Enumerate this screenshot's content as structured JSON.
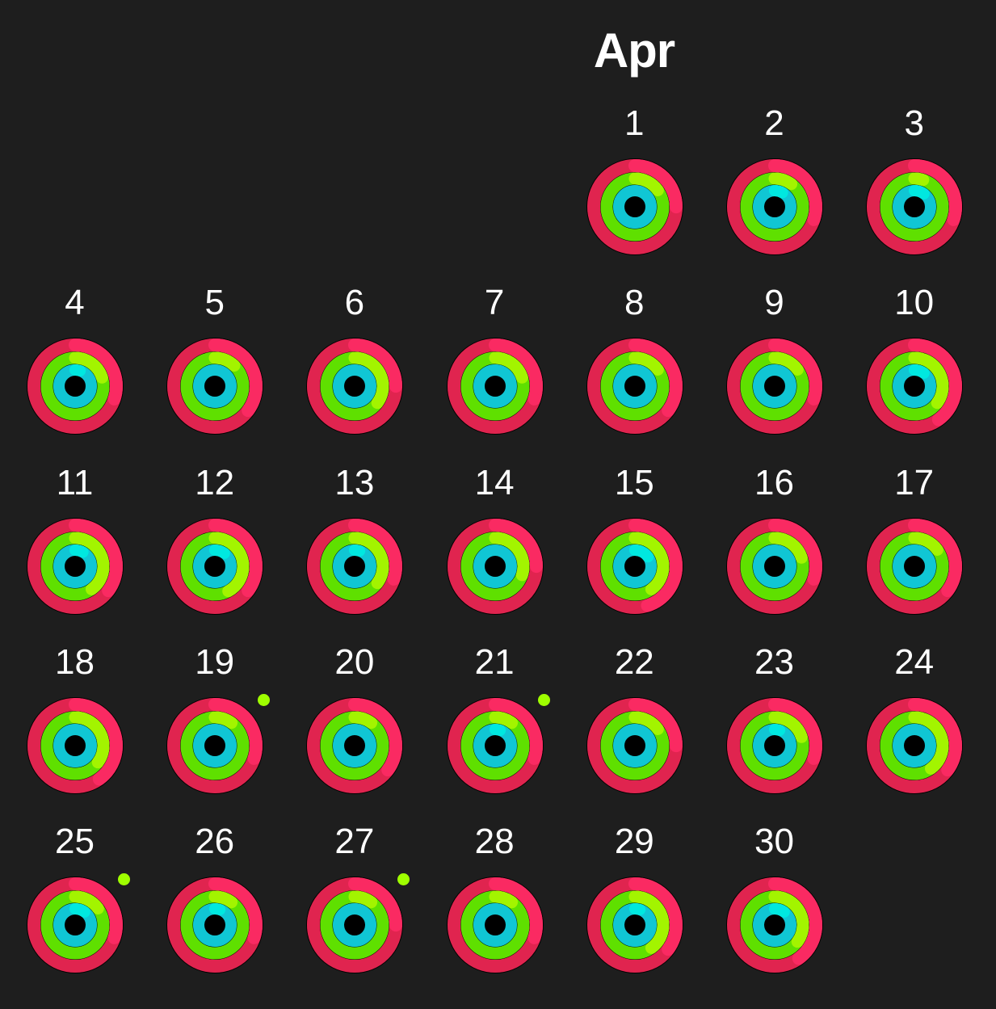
{
  "month": "Apr",
  "first_weekday_index": 4,
  "colors": {
    "background": "#1e1e1e",
    "move": "#fa2a62",
    "move_dark": "#e0244f",
    "move_track": "#3a0f1c",
    "exercise": "#a3f400",
    "exercise_dark": "#5fe000",
    "exercise_track": "#213a00",
    "stand": "#00e8e0",
    "stand_dark": "#10c6d4",
    "stand_track": "#063a3b",
    "award": "#9fff00"
  },
  "days": [
    {
      "day": "1",
      "move": 1.25,
      "exercise": 1.15,
      "stand": 1.0,
      "award": false
    },
    {
      "day": "2",
      "move": 1.3,
      "exercise": 1.1,
      "stand": 1.08,
      "award": false
    },
    {
      "day": "3",
      "move": 1.3,
      "exercise": 1.05,
      "stand": 1.1,
      "award": false
    },
    {
      "day": "4",
      "move": 1.3,
      "exercise": 1.2,
      "stand": 1.05,
      "award": false
    },
    {
      "day": "5",
      "move": 1.35,
      "exercise": 1.12,
      "stand": 1.0,
      "award": false
    },
    {
      "day": "6",
      "move": 1.25,
      "exercise": 1.35,
      "stand": 1.0,
      "award": false
    },
    {
      "day": "7",
      "move": 1.3,
      "exercise": 1.2,
      "stand": 1.0,
      "award": false
    },
    {
      "day": "8",
      "move": 1.35,
      "exercise": 1.15,
      "stand": 1.0,
      "award": false
    },
    {
      "day": "9",
      "move": 1.3,
      "exercise": 1.15,
      "stand": 1.0,
      "award": false
    },
    {
      "day": "10",
      "move": 1.4,
      "exercise": 1.35,
      "stand": 1.1,
      "award": false
    },
    {
      "day": "11",
      "move": 1.35,
      "exercise": 1.4,
      "stand": 1.08,
      "award": false
    },
    {
      "day": "12",
      "move": 1.35,
      "exercise": 1.42,
      "stand": 1.1,
      "award": false
    },
    {
      "day": "13",
      "move": 1.3,
      "exercise": 1.35,
      "stand": 1.05,
      "award": false
    },
    {
      "day": "14",
      "move": 1.25,
      "exercise": 1.3,
      "stand": 1.0,
      "award": false
    },
    {
      "day": "15",
      "move": 1.45,
      "exercise": 1.4,
      "stand": 1.15,
      "award": false
    },
    {
      "day": "16",
      "move": 1.3,
      "exercise": 1.2,
      "stand": 1.0,
      "award": false
    },
    {
      "day": "17",
      "move": 1.35,
      "exercise": 1.15,
      "stand": 1.0,
      "award": false
    },
    {
      "day": "18",
      "move": 1.4,
      "exercise": 1.35,
      "stand": 1.0,
      "award": false
    },
    {
      "day": "19",
      "move": 1.3,
      "exercise": 1.1,
      "stand": 1.0,
      "award": true
    },
    {
      "day": "20",
      "move": 1.35,
      "exercise": 1.1,
      "stand": 1.0,
      "award": false
    },
    {
      "day": "21",
      "move": 1.3,
      "exercise": 1.1,
      "stand": 1.05,
      "award": true
    },
    {
      "day": "22",
      "move": 1.25,
      "exercise": 1.15,
      "stand": 1.0,
      "award": false
    },
    {
      "day": "23",
      "move": 1.3,
      "exercise": 1.2,
      "stand": 1.05,
      "award": false
    },
    {
      "day": "24",
      "move": 1.35,
      "exercise": 1.4,
      "stand": 1.0,
      "award": false
    },
    {
      "day": "25",
      "move": 1.3,
      "exercise": 1.15,
      "stand": 1.1,
      "award": true
    },
    {
      "day": "26",
      "move": 1.3,
      "exercise": 1.1,
      "stand": 1.05,
      "award": false
    },
    {
      "day": "27",
      "move": 1.25,
      "exercise": 1.1,
      "stand": 1.0,
      "award": true
    },
    {
      "day": "28",
      "move": 1.3,
      "exercise": 1.1,
      "stand": 1.0,
      "award": false
    },
    {
      "day": "29",
      "move": 1.35,
      "exercise": 1.4,
      "stand": 1.05,
      "award": false
    },
    {
      "day": "30",
      "move": 1.4,
      "exercise": 1.35,
      "stand": 1.1,
      "award": false
    }
  ]
}
